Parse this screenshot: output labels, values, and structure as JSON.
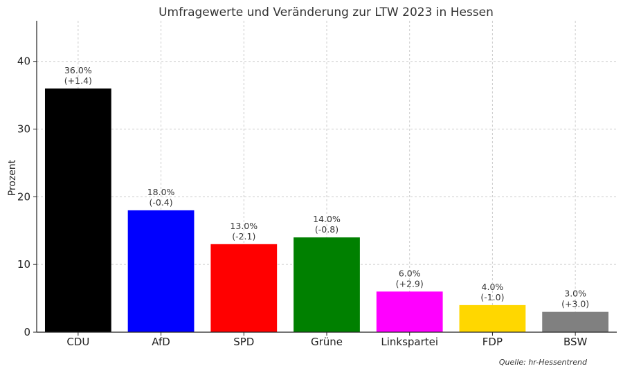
{
  "chart_data": {
    "type": "bar",
    "title": "Umfragewerte und Veränderung zur LTW 2023 in Hessen",
    "xlabel": "",
    "ylabel": "Prozent",
    "ylim": [
      0,
      46
    ],
    "yticks": [
      0,
      10,
      20,
      30,
      40
    ],
    "grid": true,
    "categories": [
      "CDU",
      "AfD",
      "SPD",
      "Grüne",
      "Linkspartei",
      "FDP",
      "BSW"
    ],
    "values": [
      36.0,
      18.0,
      13.0,
      14.0,
      6.0,
      4.0,
      3.0
    ],
    "value_labels": [
      "36.0%",
      "18.0%",
      "13.0%",
      "14.0%",
      "6.0%",
      "4.0%",
      "3.0%"
    ],
    "change_labels": [
      "(+1.4)",
      "(-0.4)",
      "(-2.1)",
      "(-0.8)",
      "(+2.9)",
      "(-1.0)",
      "(+3.0)"
    ],
    "colors": [
      "#000000",
      "#0000ff",
      "#ff0000",
      "#008000",
      "#ff00ff",
      "#ffd700",
      "#808080"
    ],
    "source": "Quelle: hr-Hessentrend"
  }
}
